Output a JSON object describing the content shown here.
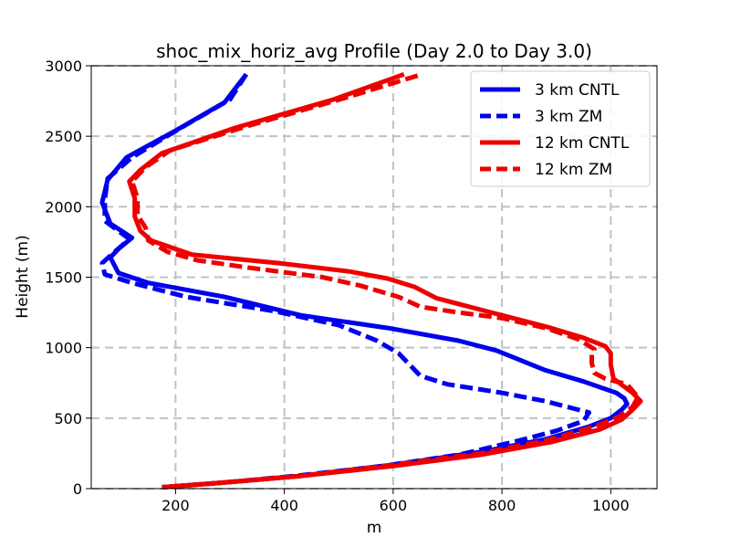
{
  "chart_data": {
    "type": "line",
    "title": "shoc_mix_horiz_avg Profile (Day 2.0 to Day 3.0)",
    "xlabel": "m",
    "ylabel": "Height (m)",
    "xlim": [
      45,
      1085
    ],
    "ylim": [
      0,
      3000
    ],
    "xticks": [
      200,
      400,
      600,
      800,
      1000
    ],
    "yticks": [
      0,
      500,
      1000,
      1500,
      2000,
      2500,
      3000
    ],
    "grid": true,
    "legend_position": "top-right",
    "series": [
      {
        "name": "3 km CNTL",
        "color": "#0000ee",
        "dash": "solid",
        "points": [
          [
            330,
            2940
          ],
          [
            290,
            2740
          ],
          [
            200,
            2540
          ],
          [
            110,
            2350
          ],
          [
            75,
            2190
          ],
          [
            65,
            2030
          ],
          [
            80,
            1880
          ],
          [
            120,
            1780
          ],
          [
            95,
            1700
          ],
          [
            80,
            1640
          ],
          [
            95,
            1530
          ],
          [
            150,
            1460
          ],
          [
            290,
            1360
          ],
          [
            430,
            1230
          ],
          [
            590,
            1140
          ],
          [
            720,
            1050
          ],
          [
            790,
            980
          ],
          [
            880,
            840
          ],
          [
            950,
            760
          ],
          [
            1010,
            680
          ],
          [
            1025,
            640
          ],
          [
            1030,
            600
          ],
          [
            1020,
            560
          ],
          [
            1000,
            500
          ],
          [
            960,
            440
          ],
          [
            880,
            350
          ],
          [
            760,
            260
          ],
          [
            600,
            170
          ],
          [
            430,
            90
          ],
          [
            280,
            40
          ],
          [
            175,
            10
          ]
        ]
      },
      {
        "name": "3 km ZM",
        "color": "#0000ee",
        "dash": "dashed",
        "points": [
          [
            330,
            2940
          ],
          [
            300,
            2760
          ],
          [
            210,
            2560
          ],
          [
            120,
            2350
          ],
          [
            75,
            2200
          ],
          [
            70,
            2050
          ],
          [
            70,
            1900
          ],
          [
            115,
            1770
          ],
          [
            85,
            1670
          ],
          [
            65,
            1600
          ],
          [
            70,
            1520
          ],
          [
            120,
            1460
          ],
          [
            220,
            1360
          ],
          [
            380,
            1260
          ],
          [
            500,
            1160
          ],
          [
            570,
            1050
          ],
          [
            610,
            960
          ],
          [
            650,
            800
          ],
          [
            700,
            740
          ],
          [
            800,
            680
          ],
          [
            880,
            620
          ],
          [
            930,
            570
          ],
          [
            960,
            540
          ],
          [
            950,
            480
          ],
          [
            900,
            410
          ],
          [
            820,
            330
          ],
          [
            720,
            240
          ],
          [
            580,
            160
          ],
          [
            420,
            90
          ],
          [
            280,
            40
          ],
          [
            175,
            10
          ]
        ]
      },
      {
        "name": "12 km CNTL",
        "color": "#ee0000",
        "dash": "solid",
        "points": [
          [
            620,
            2940
          ],
          [
            490,
            2760
          ],
          [
            310,
            2560
          ],
          [
            175,
            2380
          ],
          [
            135,
            2260
          ],
          [
            115,
            2180
          ],
          [
            125,
            2060
          ],
          [
            125,
            1930
          ],
          [
            135,
            1830
          ],
          [
            155,
            1760
          ],
          [
            230,
            1660
          ],
          [
            390,
            1600
          ],
          [
            520,
            1540
          ],
          [
            590,
            1490
          ],
          [
            640,
            1430
          ],
          [
            680,
            1350
          ],
          [
            760,
            1270
          ],
          [
            830,
            1200
          ],
          [
            890,
            1140
          ],
          [
            950,
            1070
          ],
          [
            990,
            1010
          ],
          [
            1000,
            960
          ],
          [
            1000,
            880
          ],
          [
            1005,
            780
          ],
          [
            1040,
            680
          ],
          [
            1055,
            620
          ],
          [
            1040,
            560
          ],
          [
            1020,
            490
          ],
          [
            980,
            420
          ],
          [
            890,
            330
          ],
          [
            760,
            240
          ],
          [
            600,
            160
          ],
          [
            430,
            90
          ],
          [
            280,
            40
          ],
          [
            175,
            10
          ]
        ]
      },
      {
        "name": "12 km ZM",
        "color": "#ee0000",
        "dash": "dashed",
        "points": [
          [
            645,
            2930
          ],
          [
            510,
            2770
          ],
          [
            330,
            2570
          ],
          [
            190,
            2400
          ],
          [
            145,
            2280
          ],
          [
            120,
            2180
          ],
          [
            130,
            2060
          ],
          [
            130,
            1940
          ],
          [
            145,
            1850
          ],
          [
            150,
            1760
          ],
          [
            185,
            1680
          ],
          [
            240,
            1620
          ],
          [
            330,
            1570
          ],
          [
            470,
            1500
          ],
          [
            540,
            1440
          ],
          [
            610,
            1360
          ],
          [
            650,
            1290
          ],
          [
            720,
            1250
          ],
          [
            800,
            1210
          ],
          [
            880,
            1140
          ],
          [
            940,
            1060
          ],
          [
            970,
            990
          ],
          [
            965,
            950
          ],
          [
            965,
            890
          ],
          [
            970,
            820
          ],
          [
            990,
            780
          ],
          [
            1030,
            740
          ],
          [
            1050,
            650
          ],
          [
            1040,
            580
          ],
          [
            1015,
            510
          ],
          [
            970,
            440
          ],
          [
            880,
            340
          ],
          [
            760,
            250
          ],
          [
            600,
            170
          ],
          [
            430,
            90
          ],
          [
            280,
            40
          ],
          [
            175,
            10
          ]
        ]
      }
    ]
  }
}
